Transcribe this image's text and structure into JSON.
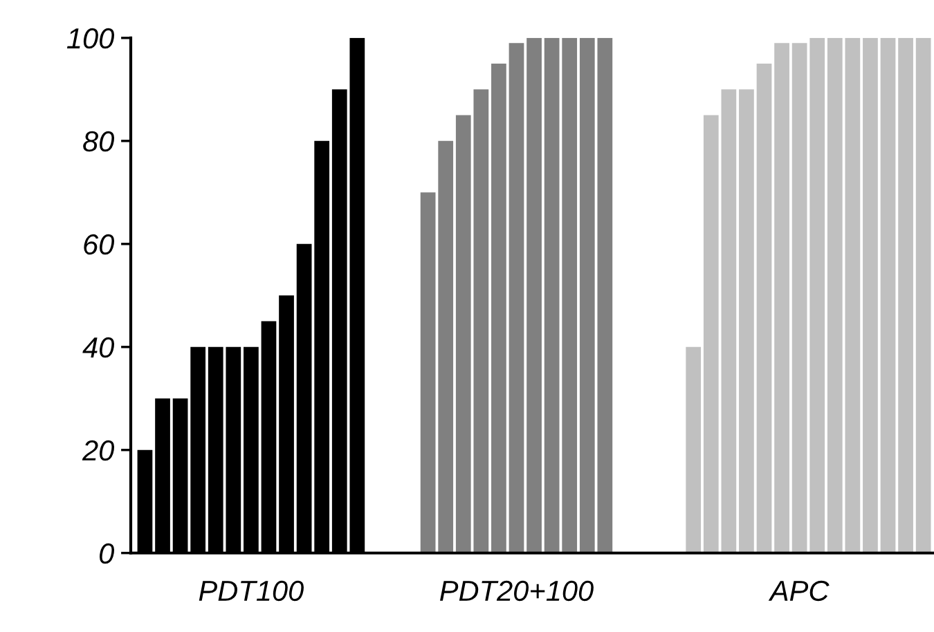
{
  "chart_data": {
    "type": "bar",
    "categories": [
      null,
      null,
      null,
      null,
      null,
      null,
      "PDT100",
      null,
      null,
      null,
      null,
      null,
      null,
      null,
      null,
      null,
      null,
      null,
      null,
      null,
      null,
      "PDT20+100",
      null,
      null,
      null,
      null,
      null,
      null,
      null,
      null,
      null,
      null,
      null,
      null,
      null,
      null,
      null,
      "APC",
      null,
      null,
      null,
      null,
      null,
      null,
      null
    ],
    "values": [
      20,
      30,
      30,
      40,
      40,
      40,
      40,
      45,
      50,
      60,
      80,
      90,
      100,
      null,
      null,
      null,
      70,
      80,
      85,
      90,
      95,
      99,
      100,
      100,
      100,
      100,
      100,
      null,
      null,
      null,
      null,
      40,
      85,
      90,
      90,
      95,
      99,
      99,
      100,
      100,
      100,
      100,
      100,
      100,
      100
    ],
    "colors": [
      "#000000",
      "#000000",
      "#000000",
      "#000000",
      "#000000",
      "#000000",
      "#000000",
      "#000000",
      "#000000",
      "#000000",
      "#000000",
      "#000000",
      "#000000",
      null,
      null,
      null,
      "#808080",
      "#808080",
      "#808080",
      "#808080",
      "#808080",
      "#808080",
      "#808080",
      "#808080",
      "#808080",
      "#808080",
      "#808080",
      null,
      null,
      null,
      null,
      "#c0c0c0",
      "#c0c0c0",
      "#c0c0c0",
      "#c0c0c0",
      "#c0c0c0",
      "#c0c0c0",
      "#c0c0c0",
      "#c0c0c0",
      "#c0c0c0",
      "#c0c0c0",
      "#c0c0c0",
      "#c0c0c0",
      "#c0c0c0",
      "#c0c0c0"
    ],
    "ylim": [
      0,
      100
    ],
    "yticks": [
      0,
      20,
      40,
      60,
      80,
      100
    ],
    "grid": false
  }
}
